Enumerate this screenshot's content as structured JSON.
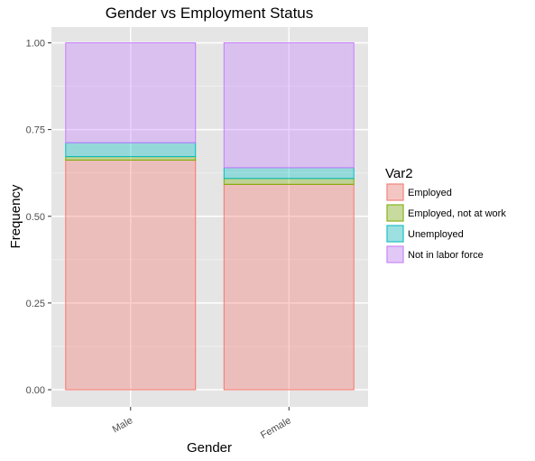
{
  "chart_data": {
    "type": "bar",
    "stacked": true,
    "title": "Gender vs Employment Status",
    "xlabel": "Gender",
    "ylabel": "Frequency",
    "categories": [
      "Male",
      "Female"
    ],
    "ylim": [
      0,
      1
    ],
    "yticks": [
      0,
      0.25,
      0.5,
      0.75,
      1.0
    ],
    "ytick_labels": [
      "0.00",
      "0.25",
      "0.50",
      "0.75",
      "1.00"
    ],
    "legend_title": "Var2",
    "legend_position": "right",
    "grid": true,
    "series": [
      {
        "name": "Employed",
        "values": [
          0.662,
          0.592
        ],
        "fill": "#f8766d",
        "stroke": "#f8766d"
      },
      {
        "name": "Employed, not at work",
        "values": [
          0.01,
          0.017
        ],
        "fill": "#7cae00",
        "stroke": "#7cae00"
      },
      {
        "name": "Unemployed",
        "values": [
          0.04,
          0.031
        ],
        "fill": "#00bfc4",
        "stroke": "#00bfc4"
      },
      {
        "name": "Not in labor force",
        "values": [
          0.288,
          0.36
        ],
        "fill": "#c77cff",
        "stroke": "#c77cff"
      }
    ],
    "colors": {
      "panel_background": "#e5e5e5",
      "grid_major": "#ffffff",
      "grid_minor": "#f2f2f2",
      "tick_text": "#4d4d4d",
      "title_text": "#000000"
    }
  }
}
